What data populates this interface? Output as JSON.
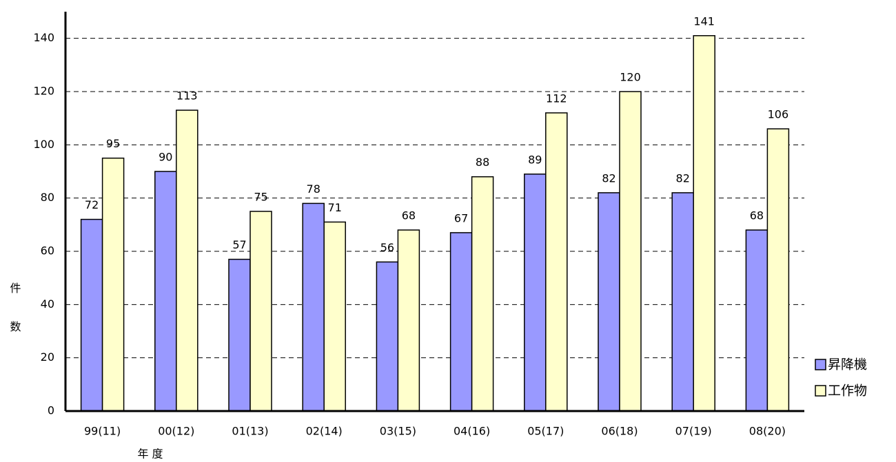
{
  "chart_data": {
    "type": "bar",
    "categories": [
      "99(11)",
      "00(12)",
      "01(13)",
      "02(14)",
      "03(15)",
      "04(16)",
      "05(17)",
      "06(18)",
      "07(19)",
      "08(20)"
    ],
    "series": [
      {
        "name": "昇降機",
        "color": "#9999ff",
        "values": [
          72,
          90,
          57,
          78,
          56,
          67,
          89,
          82,
          82,
          68
        ]
      },
      {
        "name": "工作物",
        "color": "#ffffcc",
        "values": [
          95,
          113,
          75,
          71,
          68,
          88,
          112,
          120,
          141,
          106
        ]
      }
    ],
    "x_label": "年 度",
    "y_label": "件数",
    "ylim": [
      0,
      150
    ],
    "yticks": [
      0,
      20,
      40,
      60,
      80,
      100,
      120,
      140
    ],
    "grid": true,
    "legend": "right"
  }
}
